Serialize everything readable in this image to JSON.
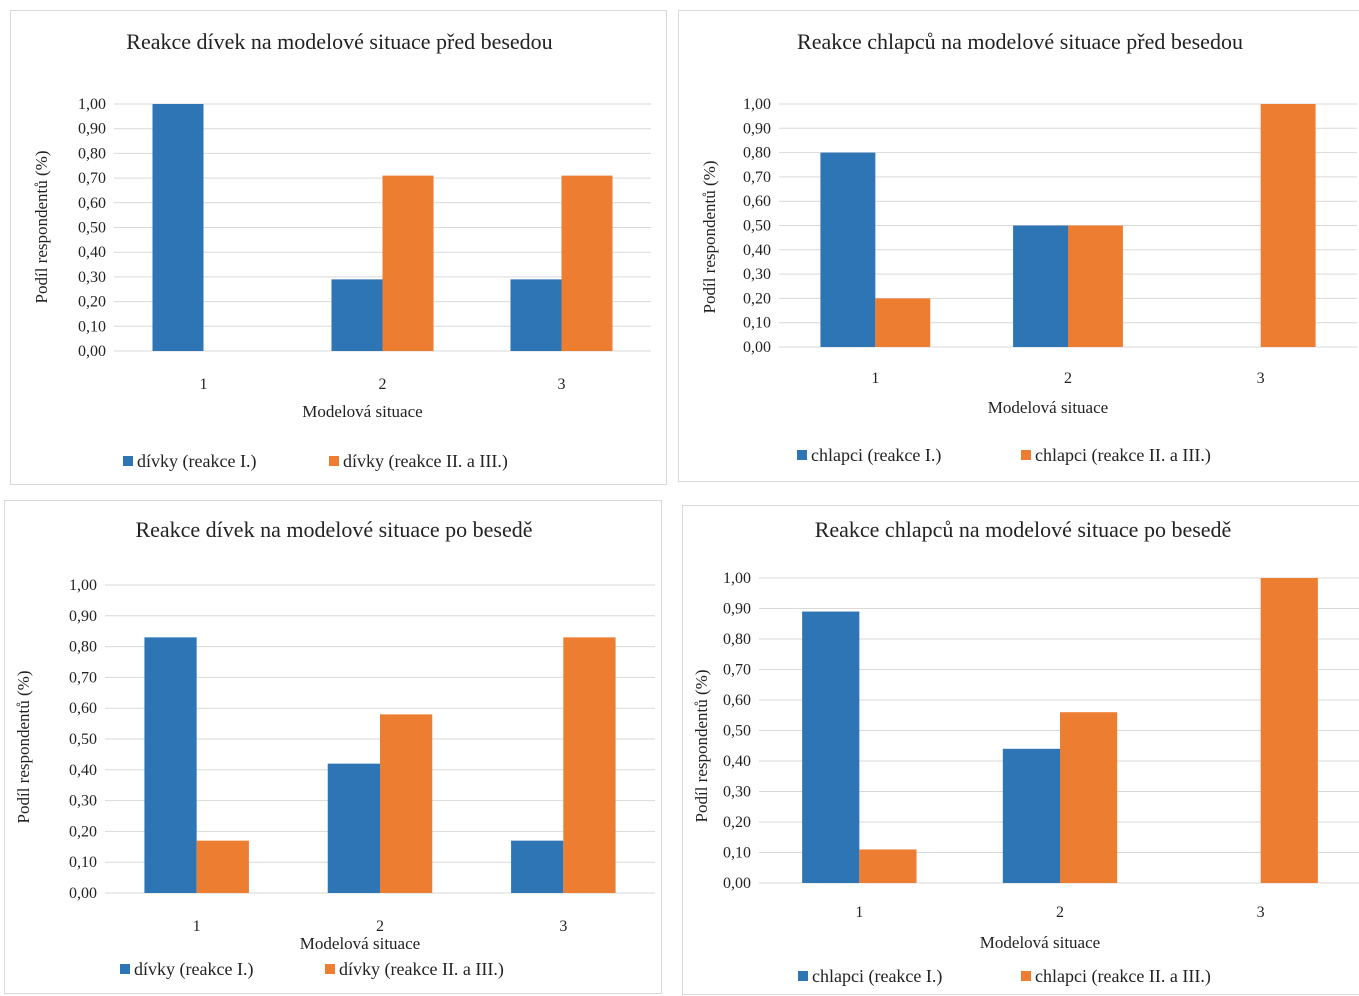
{
  "colors": {
    "series1": "#2e75b6",
    "series2": "#ed7d31",
    "grid": "#d9d9d9"
  },
  "chart_data": [
    {
      "type": "bar",
      "title": "Reakce dívek na modelové situace před besedou",
      "xlabel": "Modelová situace",
      "ylabel": "Podíl respondentů (%)",
      "categories": [
        "1",
        "2",
        "3"
      ],
      "ylim": [
        0,
        1
      ],
      "yticks": [
        "0,00",
        "0,10",
        "0,20",
        "0,30",
        "0,40",
        "0,50",
        "0,60",
        "0,70",
        "0,80",
        "0,90",
        "1,00"
      ],
      "grid": true,
      "legend": "bottom",
      "series": [
        {
          "name": "dívky (reakce I.)",
          "values": [
            1.0,
            0.29,
            0.29
          ]
        },
        {
          "name": "dívky (reakce II. a III.)",
          "values": [
            0,
            0.71,
            0.71
          ]
        }
      ]
    },
    {
      "type": "bar",
      "title": "Reakce chlapců na modelové situace  před besedou",
      "xlabel": "Modelová situace",
      "ylabel": "Podíl respondentů (%)",
      "categories": [
        "1",
        "2",
        "3"
      ],
      "ylim": [
        0,
        1
      ],
      "yticks": [
        "0,00",
        "0,10",
        "0,20",
        "0,30",
        "0,40",
        "0,50",
        "0,60",
        "0,70",
        "0,80",
        "0,90",
        "1,00"
      ],
      "grid": true,
      "legend": "bottom",
      "series": [
        {
          "name": "chlapci (reakce I.)",
          "values": [
            0.8,
            0.5,
            0
          ]
        },
        {
          "name": "chlapci (reakce II. a III.)",
          "values": [
            0.2,
            0.5,
            1.0
          ]
        }
      ]
    },
    {
      "type": "bar",
      "title": "Reakce dívek na modelové situace po besedě",
      "xlabel": "Modelová situace",
      "ylabel": "Podíl respondentů (%)",
      "categories": [
        "1",
        "2",
        "3"
      ],
      "ylim": [
        0,
        1
      ],
      "yticks": [
        "0,00",
        "0,10",
        "0,20",
        "0,30",
        "0,40",
        "0,50",
        "0,60",
        "0,70",
        "0,80",
        "0,90",
        "1,00"
      ],
      "grid": true,
      "legend": "bottom",
      "series": [
        {
          "name": "dívky (reakce I.)",
          "values": [
            0.83,
            0.42,
            0.17
          ]
        },
        {
          "name": "dívky (reakce II. a III.)",
          "values": [
            0.17,
            0.58,
            0.83
          ]
        }
      ]
    },
    {
      "type": "bar",
      "title": "Reakce chlapců  na modelové situace po besedě",
      "xlabel": "Modelová situace",
      "ylabel": "Podíl respondentů (%)",
      "categories": [
        "1",
        "2",
        "3"
      ],
      "ylim": [
        0,
        1
      ],
      "yticks": [
        "0,00",
        "0,10",
        "0,20",
        "0,30",
        "0,40",
        "0,50",
        "0,60",
        "0,70",
        "0,80",
        "0,90",
        "1,00"
      ],
      "grid": true,
      "legend": "bottom",
      "series": [
        {
          "name": "chlapci (reakce I.)",
          "values": [
            0.89,
            0.44,
            0
          ]
        },
        {
          "name": "chlapci (reakce II. a III.)",
          "values": [
            0.11,
            0.56,
            1.0
          ]
        }
      ]
    }
  ]
}
